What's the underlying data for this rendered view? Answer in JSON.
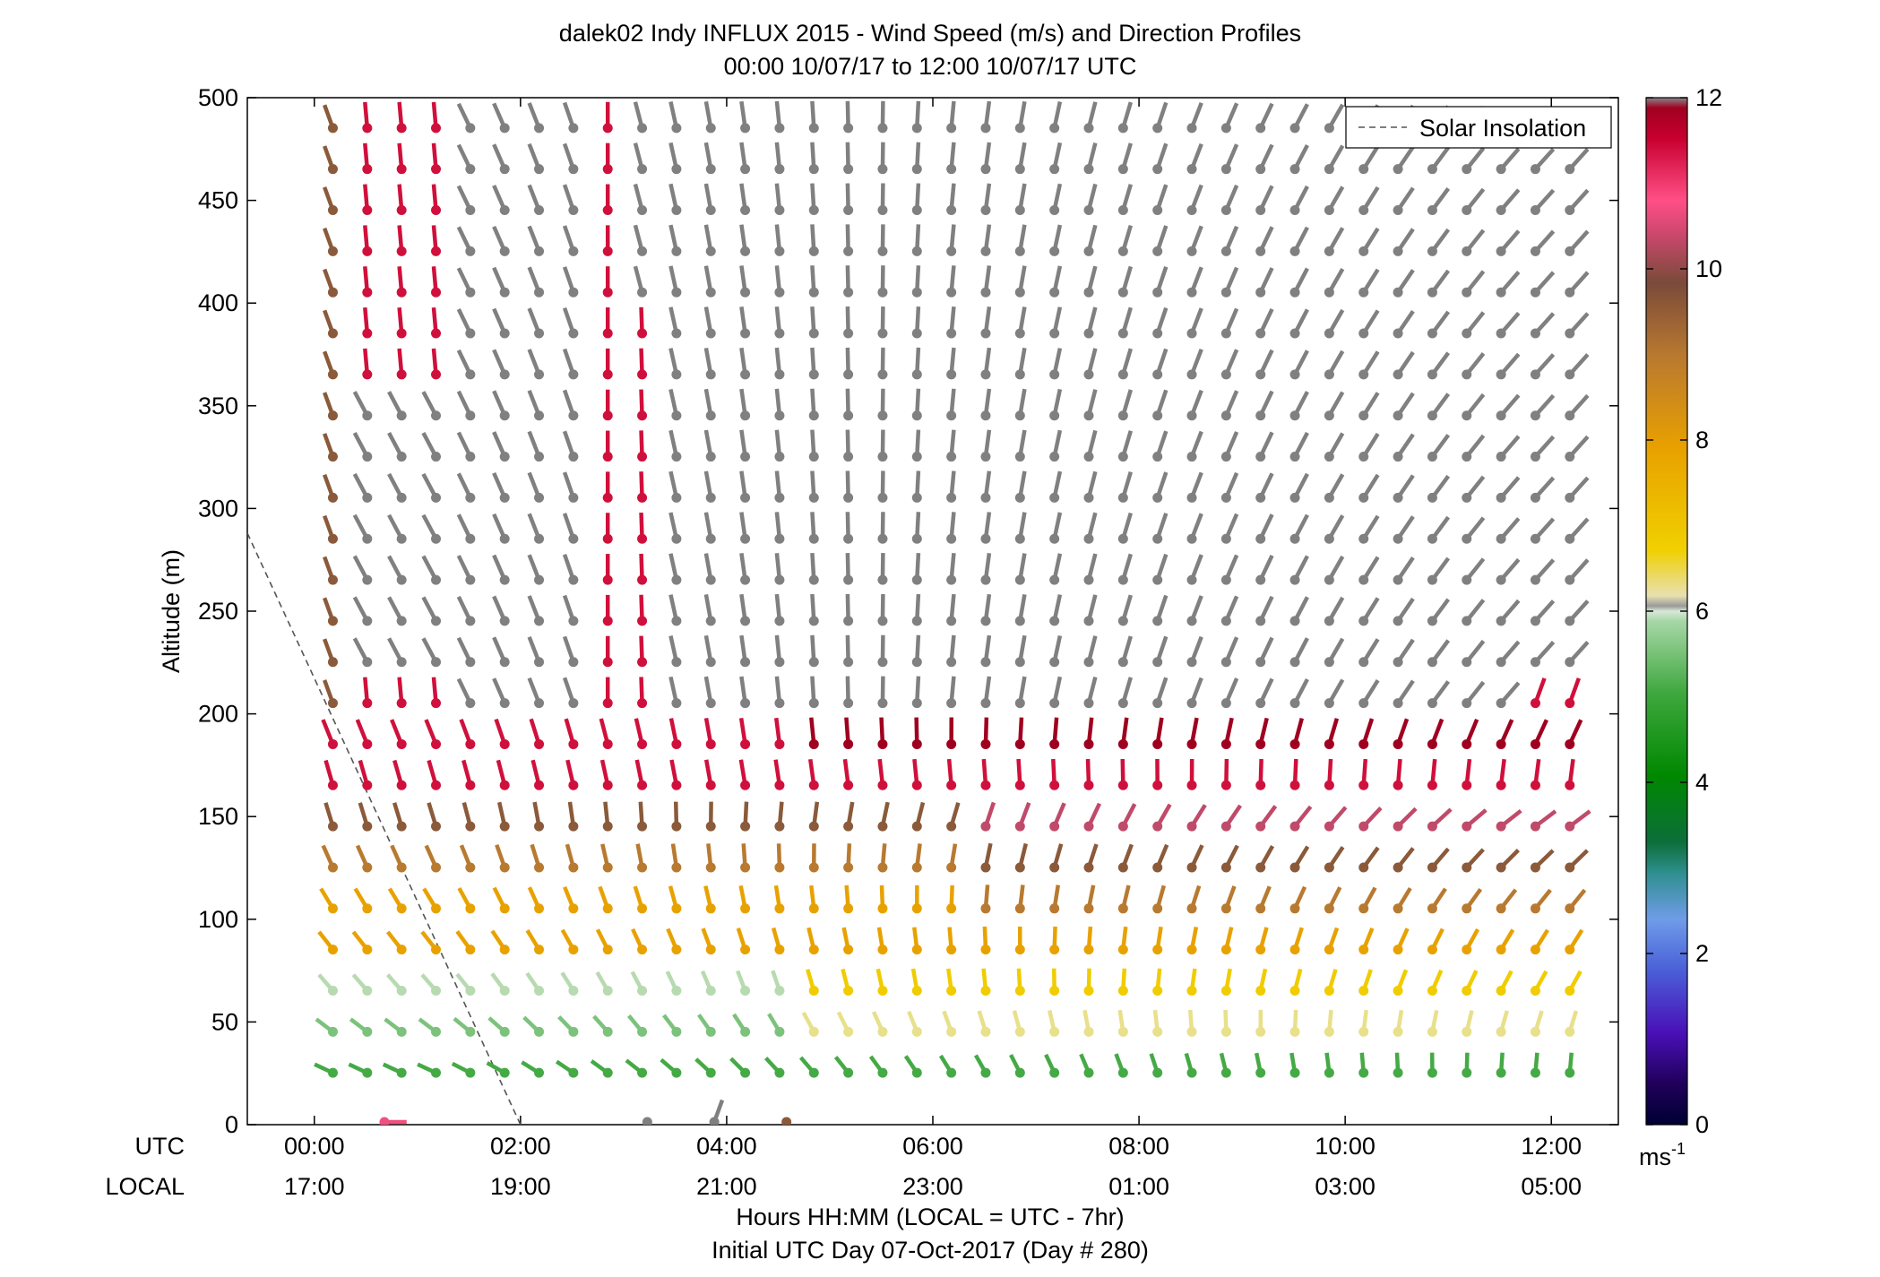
{
  "chart_data": {
    "type": "wind-profile",
    "title": "dalek02 Indy INFLUX 2015 - Wind Speed (m/s) and Direction Profiles",
    "subtitle": "00:00 10/07/17 to 12:00 10/07/17  UTC",
    "ylabel": "Altitude (m)",
    "xlabel": "Hours HH:MM  (LOCAL = UTC - 7hr)",
    "xlabel2": "Initial UTC Day 07-Oct-2017 (Day # 280)",
    "utc_label": "UTC",
    "local_label": "LOCAL",
    "xlim_hours": [
      -0.65,
      12.65
    ],
    "ylim": [
      0,
      500
    ],
    "grid": false,
    "yticks": [
      0,
      50,
      100,
      150,
      200,
      250,
      300,
      350,
      400,
      450,
      500
    ],
    "xticks_hours": [
      0,
      2,
      4,
      6,
      8,
      10,
      12
    ],
    "xtick_utc": [
      "00:00",
      "02:00",
      "04:00",
      "06:00",
      "08:00",
      "10:00",
      "12:00"
    ],
    "xtick_local": [
      "17:00",
      "19:00",
      "21:00",
      "23:00",
      "01:00",
      "03:00",
      "05:00"
    ],
    "colorbar": {
      "min": 0,
      "max": 12,
      "ticks": [
        0,
        2,
        4,
        6,
        8,
        10,
        12
      ],
      "unit_base": "ms",
      "unit_exp": "-1"
    },
    "legend": {
      "position": "top-right",
      "entries": [
        "Solar Insolation"
      ]
    },
    "solar_insolation_line": {
      "start": [
        -0.65,
        288
      ],
      "end": [
        2.0,
        0
      ]
    },
    "time_step_hours": 0.3333,
    "altitudes": [
      20,
      40,
      60,
      80,
      100,
      120,
      140,
      160,
      180,
      200,
      220,
      240,
      260,
      280,
      300,
      320,
      340,
      360,
      380,
      400,
      420,
      440,
      460,
      480,
      500
    ],
    "surface_points": [
      {
        "t": 0.5,
        "speed": 10.8,
        "dir": 270
      },
      {
        "t": 3.05,
        "speed": 12.5,
        "dir": 0
      },
      {
        "t": 3.7,
        "speed": 12.5,
        "dir": 200
      },
      {
        "t": 4.4,
        "speed": 9.5,
        "dir": 0
      }
    ]
  }
}
